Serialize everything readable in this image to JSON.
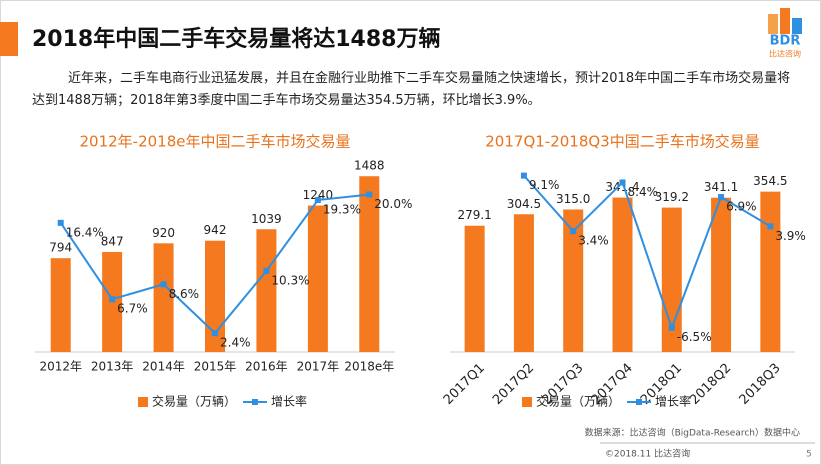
{
  "header": {
    "title": "2018年中国二手车交易量将达1488万辆",
    "logo": "BDR",
    "logo_sub": "比达咨询"
  },
  "paragraph": "近年来，二手车电商行业迅猛发展，并且在金融行业助推下二手车交易量随之快速增长，预计2018年中国二手车市场交易量将达到1488万辆；2018年第3季度中国二手车市场交易量达354.5万辆，环比增长3.9%。",
  "footer": {
    "source": "数据来源：比达咨询（BigData-Research）数据中心",
    "copyright": "©2018.11 比达咨询",
    "page": "5"
  },
  "chart_data": [
    {
      "type": "bar",
      "title": "2012年-2018e年中国二手车市场交易量",
      "categories": [
        "2012年",
        "2013年",
        "2014年",
        "2015年",
        "2016年",
        "2017年",
        "2018e年"
      ],
      "ylim": [
        0,
        1600
      ],
      "y2lim": [
        0,
        24
      ],
      "series": [
        {
          "name": "交易量（万辆）",
          "type": "bar",
          "color": "#f4791f",
          "values": [
            794,
            847,
            920,
            942,
            1039,
            1240,
            1488
          ]
        },
        {
          "name": "增长率",
          "type": "line",
          "axis": "y2",
          "color": "#2f8fe0",
          "values": [
            16.4,
            6.7,
            8.6,
            2.4,
            10.3,
            19.3,
            20.0
          ],
          "value_labels": [
            "16.4%",
            "6.7%",
            "8.6%",
            "2.4%",
            "10.3%",
            "19.3%",
            "20.0%"
          ]
        }
      ]
    },
    {
      "type": "bar",
      "title": "2017Q1-2018Q3中国二手车市场交易量",
      "categories": [
        "2017Q1",
        "2017Q2",
        "2017Q3",
        "2017Q4",
        "2018Q1",
        "2018Q2",
        "2018Q3"
      ],
      "ylim": [
        0,
        420
      ],
      "y2lim": [
        -9,
        10.5
      ],
      "series": [
        {
          "name": "交易量（万辆）",
          "type": "bar",
          "color": "#f4791f",
          "values": [
            279.1,
            304.5,
            315.0,
            341.4,
            319.2,
            341.1,
            354.5
          ],
          "value_labels": [
            "279.1",
            "304.5",
            "315.0",
            "341.4",
            "319.2",
            "341.1",
            "354.5"
          ]
        },
        {
          "name": "增长率",
          "type": "line",
          "axis": "y2",
          "color": "#2f8fe0",
          "values": [
            null,
            9.1,
            3.4,
            8.4,
            -6.5,
            6.9,
            3.9
          ],
          "value_labels": [
            null,
            "9.1%",
            "3.4%",
            "8.4%",
            "-6.5%",
            "6.9%",
            "3.9%"
          ]
        }
      ]
    }
  ]
}
